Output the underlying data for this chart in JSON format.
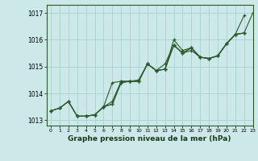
{
  "title": "Graphe pression niveau de la mer (hPa)",
  "bg_color": "#cce8e8",
  "grid_color": "#aad4d4",
  "line_color": "#2d5a2d",
  "xlim": [
    -0.5,
    23
  ],
  "ylim": [
    1012.8,
    1017.3
  ],
  "yticks": [
    1013,
    1014,
    1015,
    1016,
    1017
  ],
  "xticks": [
    0,
    1,
    2,
    3,
    4,
    5,
    6,
    7,
    8,
    9,
    10,
    11,
    12,
    13,
    14,
    15,
    16,
    17,
    18,
    19,
    20,
    21,
    22,
    23
  ],
  "series": [
    [
      1013.35,
      1013.45,
      1013.7,
      1013.15,
      1013.15,
      1013.2,
      1013.5,
      1013.7,
      1014.45,
      1014.45,
      1014.45,
      1015.1,
      1014.85,
      1014.9,
      1016.0,
      1015.6,
      1015.7,
      1015.35,
      1015.3,
      1015.4,
      1015.85,
      1016.2,
      1016.9,
      null
    ],
    [
      1013.35,
      1013.45,
      1013.7,
      1013.15,
      1013.15,
      1013.2,
      1013.5,
      1014.4,
      1014.45,
      1014.45,
      1014.5,
      1015.1,
      1014.85,
      1015.1,
      1015.8,
      1015.5,
      1015.6,
      1015.35,
      1015.3,
      1015.4,
      1015.85,
      1016.2,
      1016.25,
      null
    ],
    [
      1013.35,
      1013.45,
      1013.7,
      1013.15,
      1013.15,
      1013.2,
      1013.5,
      1013.6,
      1014.4,
      1014.45,
      1014.45,
      1015.1,
      1014.85,
      1014.9,
      1015.8,
      1015.5,
      1015.7,
      1015.35,
      1015.3,
      1015.4,
      1015.85,
      1016.2,
      1016.25,
      null
    ],
    [
      null,
      null,
      null,
      1013.15,
      1013.15,
      1013.2,
      1013.5,
      1013.6,
      1014.4,
      1014.45,
      1014.45,
      1015.1,
      1014.85,
      1014.9,
      1015.8,
      1015.5,
      1015.7,
      1015.35,
      1015.3,
      1015.4,
      1015.85,
      1016.2,
      1016.25,
      1017.0
    ]
  ]
}
